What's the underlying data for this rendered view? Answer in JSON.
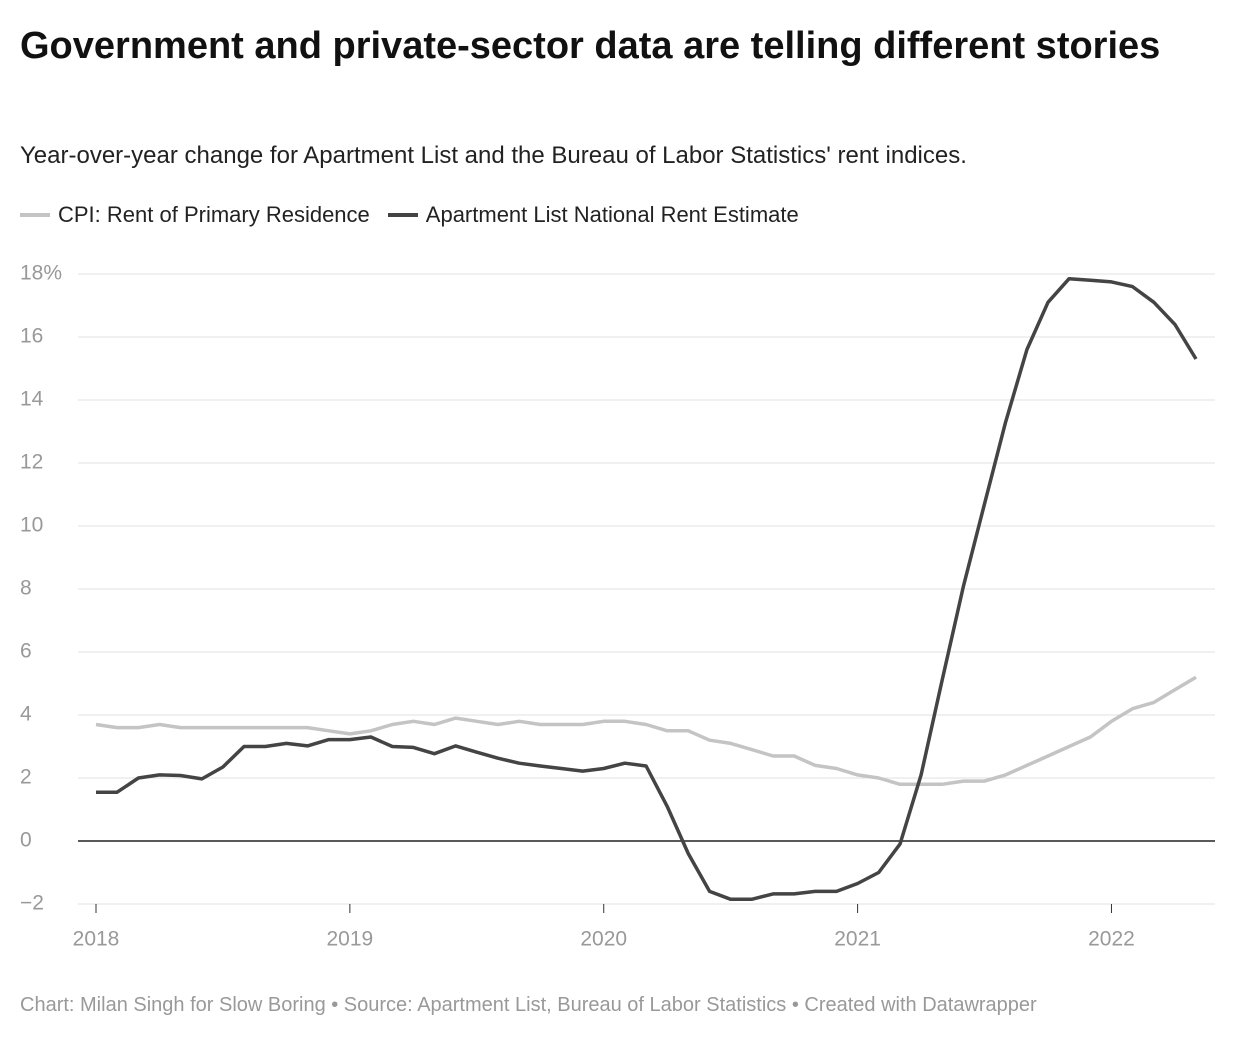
{
  "chart_data": {
    "type": "line",
    "title": "Government and private-sector data are telling different stories",
    "subtitle": "Year-over-year change for Apartment List and the Bureau of Labor Statistics' rent indices.",
    "footer": "Chart: Milan Singh for Slow Boring • Source: Apartment List, Bureau of Labor Statistics • Created with Datawrapper",
    "x": [
      2018,
      2018.083,
      2018.167,
      2018.25,
      2018.333,
      2018.417,
      2018.5,
      2018.583,
      2018.667,
      2018.75,
      2018.833,
      2018.917,
      2019,
      2019.083,
      2019.167,
      2019.25,
      2019.333,
      2019.417,
      2019.5,
      2019.583,
      2019.667,
      2019.75,
      2019.833,
      2019.917,
      2020,
      2020.083,
      2020.167,
      2020.25,
      2020.333,
      2020.417,
      2020.5,
      2020.583,
      2020.667,
      2020.75,
      2020.833,
      2020.917,
      2021,
      2021.083,
      2021.167,
      2021.25,
      2021.333,
      2021.417,
      2021.5,
      2021.583,
      2021.667,
      2021.75,
      2021.833,
      2021.917,
      2022,
      2022.083,
      2022.167,
      2022.25,
      2022.333
    ],
    "series": [
      {
        "name": "CPI: Rent of Primary Residence",
        "color": "#c4c4c4",
        "values": [
          3.7,
          3.6,
          3.6,
          3.7,
          3.6,
          3.6,
          3.6,
          3.6,
          3.6,
          3.6,
          3.6,
          3.5,
          3.4,
          3.5,
          3.7,
          3.8,
          3.7,
          3.9,
          3.8,
          3.7,
          3.8,
          3.7,
          3.7,
          3.7,
          3.8,
          3.8,
          3.7,
          3.5,
          3.5,
          3.2,
          3.1,
          2.9,
          2.7,
          2.7,
          2.4,
          2.3,
          2.1,
          2.0,
          1.8,
          1.8,
          1.8,
          1.9,
          1.9,
          2.1,
          2.4,
          2.7,
          3.0,
          3.3,
          3.8,
          4.2,
          4.4,
          4.8,
          5.2
        ]
      },
      {
        "name": "Apartment List National Rent Estimate",
        "color": "#444444",
        "values": [
          1.55,
          1.55,
          2.0,
          2.1,
          2.08,
          1.97,
          2.35,
          3.0,
          3.0,
          3.1,
          3.02,
          3.22,
          3.22,
          3.3,
          3.0,
          2.97,
          2.77,
          3.02,
          2.82,
          2.63,
          2.47,
          2.38,
          2.3,
          2.22,
          2.3,
          2.47,
          2.38,
          1.1,
          -0.4,
          -1.6,
          -1.85,
          -1.85,
          -1.68,
          -1.68,
          -1.6,
          -1.6,
          -1.35,
          -1.0,
          -0.1,
          2.1,
          5.1,
          8.1,
          10.7,
          13.3,
          15.6,
          17.1,
          17.85,
          17.8,
          17.75,
          17.6,
          17.1,
          16.4,
          15.3
        ]
      }
    ],
    "xlim": [
      2018,
      2022.333
    ],
    "xticks": [
      2018,
      2019,
      2020,
      2021,
      2022
    ],
    "ylim": [
      -2,
      18
    ],
    "yticks": [
      {
        "value": -2,
        "label": "−2"
      },
      0,
      2,
      4,
      6,
      8,
      10,
      12,
      14,
      16,
      {
        "value": 18,
        "label": "18%"
      }
    ],
    "grid": true,
    "legend": "top"
  }
}
